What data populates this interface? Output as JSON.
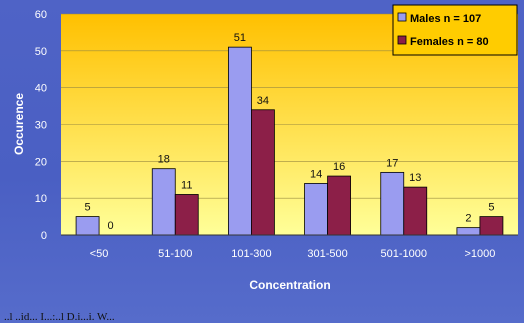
{
  "chart_data": {
    "type": "bar",
    "categories": [
      "<50",
      "51-100",
      "101-300",
      "301-500",
      "501-1000",
      ">1000"
    ],
    "series": [
      {
        "name": "Males  n = 107",
        "values": [
          5,
          18,
          51,
          14,
          17,
          2
        ],
        "color": "#9a9cf0"
      },
      {
        "name": "Females  n = 80",
        "values": [
          0,
          11,
          34,
          16,
          13,
          5
        ],
        "color": "#8c1f48"
      }
    ],
    "yticks": [
      0,
      10,
      20,
      30,
      40,
      50,
      60
    ],
    "ylim": [
      0,
      60
    ],
    "xlabel": "Concentration",
    "ylabel": "Occurence",
    "grid": "y",
    "legend_position": "top-right",
    "plot_colors": {
      "plot_top": "#ffc000",
      "plot_bottom": "#ffff99",
      "frame": "#4f63c6"
    }
  },
  "footer_text": "..l ..id... I...:..l D.i...i. W..."
}
